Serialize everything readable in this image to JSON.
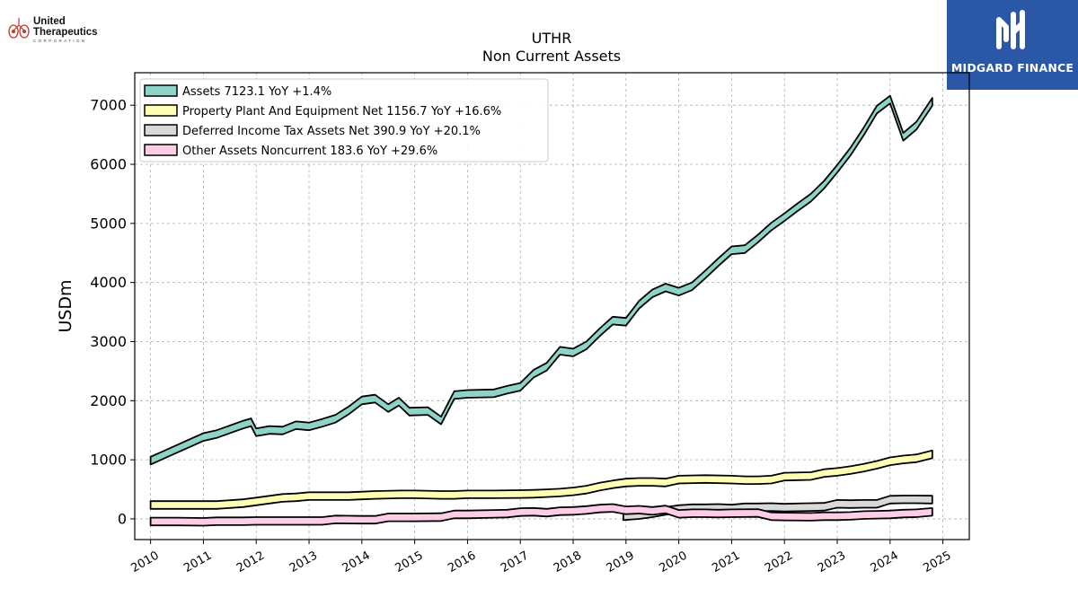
{
  "logos": {
    "left_line1": "United",
    "left_line2": "Therapeutics",
    "left_line3": "CORPORATION",
    "right_text": "MIDGARD FINANCE",
    "right_bg": "#2a58a6"
  },
  "chart_data": {
    "type": "area",
    "title": "UTHR",
    "subtitle": "Non Current  Assets",
    "ylabel": "USDm",
    "xlabel": "",
    "xlim": [
      2009.7,
      2025.5
    ],
    "ylim": [
      -350,
      7550
    ],
    "yticks": [
      0,
      1000,
      2000,
      3000,
      4000,
      5000,
      6000,
      7000
    ],
    "xticks": [
      2010,
      2011,
      2012,
      2013,
      2014,
      2015,
      2016,
      2017,
      2018,
      2019,
      2020,
      2021,
      2022,
      2023,
      2024,
      2025
    ],
    "grid": true,
    "legend_position": "top-left",
    "band_height": 130,
    "series": [
      {
        "name": "Assets",
        "legend": "Assets  7123.1 YoY +1.4%",
        "color": "#8dd3c7",
        "points": [
          [
            2010.0,
            1050
          ],
          [
            2010.25,
            1150
          ],
          [
            2010.5,
            1250
          ],
          [
            2010.75,
            1350
          ],
          [
            2011.0,
            1450
          ],
          [
            2011.25,
            1500
          ],
          [
            2011.5,
            1580
          ],
          [
            2011.75,
            1660
          ],
          [
            2011.9,
            1700
          ],
          [
            2012.0,
            1530
          ],
          [
            2012.25,
            1570
          ],
          [
            2012.5,
            1560
          ],
          [
            2012.75,
            1650
          ],
          [
            2013.0,
            1630
          ],
          [
            2013.25,
            1690
          ],
          [
            2013.5,
            1760
          ],
          [
            2013.75,
            1900
          ],
          [
            2014.0,
            2070
          ],
          [
            2014.25,
            2100
          ],
          [
            2014.5,
            1940
          ],
          [
            2014.7,
            2050
          ],
          [
            2014.9,
            1880
          ],
          [
            2015.25,
            1890
          ],
          [
            2015.5,
            1730
          ],
          [
            2015.75,
            2160
          ],
          [
            2016.0,
            2180
          ],
          [
            2016.5,
            2190
          ],
          [
            2016.75,
            2250
          ],
          [
            2017.0,
            2300
          ],
          [
            2017.25,
            2520
          ],
          [
            2017.5,
            2640
          ],
          [
            2017.75,
            2910
          ],
          [
            2018.0,
            2880
          ],
          [
            2018.25,
            3000
          ],
          [
            2018.5,
            3220
          ],
          [
            2018.75,
            3420
          ],
          [
            2019.0,
            3400
          ],
          [
            2019.25,
            3690
          ],
          [
            2019.5,
            3880
          ],
          [
            2019.75,
            3980
          ],
          [
            2020.0,
            3910
          ],
          [
            2020.25,
            4000
          ],
          [
            2020.5,
            4200
          ],
          [
            2020.75,
            4410
          ],
          [
            2021.0,
            4610
          ],
          [
            2021.25,
            4630
          ],
          [
            2021.5,
            4810
          ],
          [
            2021.75,
            5010
          ],
          [
            2022.0,
            5170
          ],
          [
            2022.25,
            5340
          ],
          [
            2022.5,
            5500
          ],
          [
            2022.75,
            5720
          ],
          [
            2023.0,
            5990
          ],
          [
            2023.25,
            6280
          ],
          [
            2023.5,
            6620
          ],
          [
            2023.75,
            6990
          ],
          [
            2024.0,
            7160
          ],
          [
            2024.25,
            6530
          ],
          [
            2024.5,
            6720
          ],
          [
            2024.8,
            7123.1
          ]
        ]
      },
      {
        "name": "Property Plant And Equipment Net",
        "legend": "Property Plant And Equipment Net  1156.7 YoY +16.6%",
        "color": "#ffffb3",
        "points": [
          [
            2010.0,
            300
          ],
          [
            2010.5,
            300
          ],
          [
            2011.0,
            300
          ],
          [
            2011.25,
            300
          ],
          [
            2011.75,
            330
          ],
          [
            2012.0,
            360
          ],
          [
            2012.25,
            390
          ],
          [
            2012.5,
            420
          ],
          [
            2012.75,
            430
          ],
          [
            2013.0,
            450
          ],
          [
            2013.5,
            450
          ],
          [
            2013.75,
            450
          ],
          [
            2014.0,
            460
          ],
          [
            2014.25,
            470
          ],
          [
            2014.75,
            480
          ],
          [
            2015.0,
            480
          ],
          [
            2015.5,
            470
          ],
          [
            2015.75,
            470
          ],
          [
            2016.0,
            480
          ],
          [
            2016.5,
            480
          ],
          [
            2017.0,
            485
          ],
          [
            2017.25,
            490
          ],
          [
            2017.5,
            500
          ],
          [
            2017.75,
            510
          ],
          [
            2018.0,
            530
          ],
          [
            2018.25,
            560
          ],
          [
            2018.5,
            610
          ],
          [
            2018.75,
            650
          ],
          [
            2019.0,
            680
          ],
          [
            2019.25,
            690
          ],
          [
            2019.5,
            690
          ],
          [
            2019.75,
            680
          ],
          [
            2020.0,
            730
          ],
          [
            2020.5,
            740
          ],
          [
            2021.0,
            730
          ],
          [
            2021.25,
            720
          ],
          [
            2021.5,
            720
          ],
          [
            2021.75,
            730
          ],
          [
            2022.0,
            780
          ],
          [
            2022.5,
            790
          ],
          [
            2022.75,
            840
          ],
          [
            2023.0,
            860
          ],
          [
            2023.25,
            890
          ],
          [
            2023.5,
            930
          ],
          [
            2023.75,
            980
          ],
          [
            2024.0,
            1040
          ],
          [
            2024.25,
            1070
          ],
          [
            2024.5,
            1090
          ],
          [
            2024.8,
            1156.7
          ]
        ]
      },
      {
        "name": "Deferred Income Tax Assets Net",
        "legend": "Deferred Income Tax Assets Net  390.9 YoY +20.1%",
        "color": "#d9d9d9",
        "points": [
          [
            2018.95,
            110
          ],
          [
            2019.25,
            130
          ],
          [
            2019.5,
            160
          ],
          [
            2019.75,
            200
          ],
          [
            2020.0,
            230
          ],
          [
            2020.25,
            245
          ],
          [
            2020.5,
            245
          ],
          [
            2020.75,
            250
          ],
          [
            2021.0,
            240
          ],
          [
            2021.25,
            260
          ],
          [
            2021.5,
            260
          ],
          [
            2021.75,
            265
          ],
          [
            2022.0,
            255
          ],
          [
            2022.25,
            260
          ],
          [
            2022.5,
            265
          ],
          [
            2022.75,
            270
          ],
          [
            2023.0,
            320
          ],
          [
            2023.25,
            315
          ],
          [
            2023.5,
            320
          ],
          [
            2023.75,
            320
          ],
          [
            2024.0,
            390
          ],
          [
            2024.25,
            395
          ],
          [
            2024.5,
            395
          ],
          [
            2024.8,
            390.9
          ]
        ]
      },
      {
        "name": "Other Assets Noncurrent",
        "legend": "Other Assets Noncurrent  183.6 YoY +29.6%",
        "color": "#fccde5",
        "points": [
          [
            2010.0,
            20
          ],
          [
            2010.5,
            20
          ],
          [
            2011.0,
            15
          ],
          [
            2011.25,
            25
          ],
          [
            2011.75,
            25
          ],
          [
            2012.0,
            30
          ],
          [
            2012.5,
            30
          ],
          [
            2013.0,
            30
          ],
          [
            2013.25,
            30
          ],
          [
            2013.5,
            55
          ],
          [
            2014.0,
            50
          ],
          [
            2014.25,
            50
          ],
          [
            2014.5,
            90
          ],
          [
            2015.0,
            90
          ],
          [
            2015.5,
            95
          ],
          [
            2015.75,
            140
          ],
          [
            2016.0,
            140
          ],
          [
            2016.5,
            150
          ],
          [
            2016.75,
            155
          ],
          [
            2017.0,
            180
          ],
          [
            2017.25,
            185
          ],
          [
            2017.5,
            170
          ],
          [
            2017.75,
            195
          ],
          [
            2018.0,
            200
          ],
          [
            2018.25,
            215
          ],
          [
            2018.5,
            240
          ],
          [
            2018.75,
            250
          ],
          [
            2019.0,
            210
          ],
          [
            2019.25,
            220
          ],
          [
            2019.5,
            200
          ],
          [
            2019.75,
            225
          ],
          [
            2020.0,
            150
          ],
          [
            2020.25,
            160
          ],
          [
            2020.5,
            160
          ],
          [
            2020.75,
            155
          ],
          [
            2021.0,
            160
          ],
          [
            2021.5,
            165
          ],
          [
            2021.75,
            110
          ],
          [
            2022.0,
            105
          ],
          [
            2022.5,
            100
          ],
          [
            2022.75,
            110
          ],
          [
            2023.0,
            110
          ],
          [
            2023.25,
            115
          ],
          [
            2023.5,
            130
          ],
          [
            2023.75,
            135
          ],
          [
            2024.0,
            140
          ],
          [
            2024.25,
            155
          ],
          [
            2024.5,
            160
          ],
          [
            2024.8,
            183.6
          ]
        ]
      }
    ]
  }
}
